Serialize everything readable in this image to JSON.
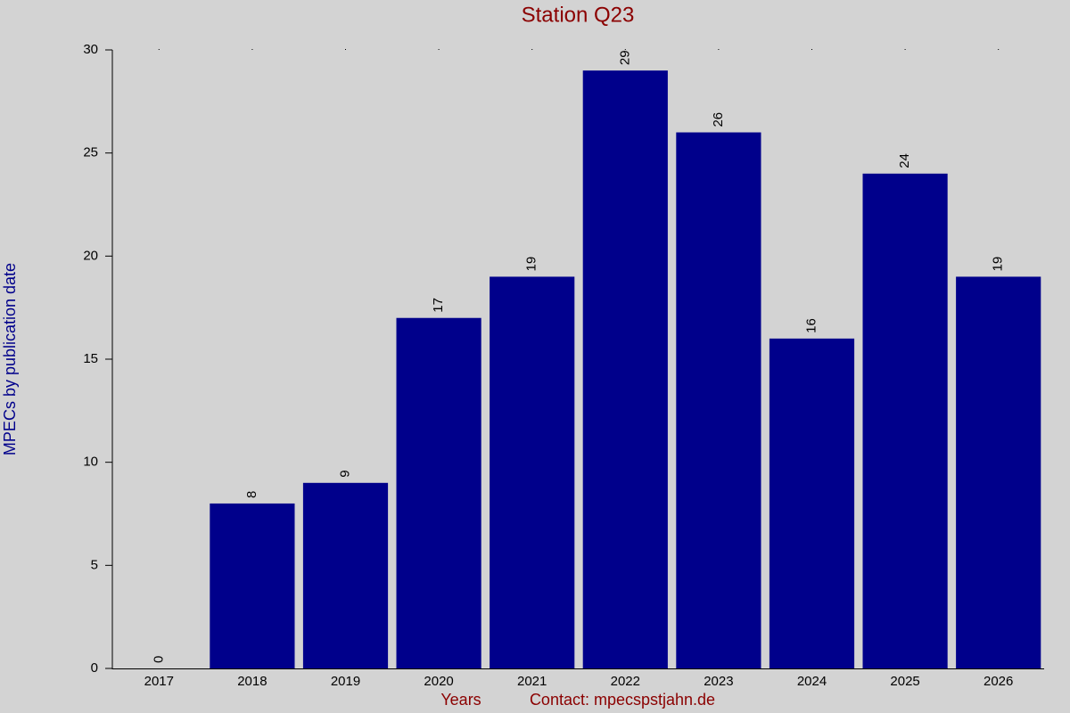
{
  "chart_data": {
    "type": "bar",
    "title": "Station Q23",
    "x_label": "Years",
    "contact": "Contact: mpecspstjahn.de",
    "y_label": "MPECs by publication date",
    "categories": [
      "2017",
      "2018",
      "2019",
      "2020",
      "2021",
      "2022",
      "2023",
      "2024",
      "2025",
      "2026"
    ],
    "values": [
      0,
      8,
      9,
      17,
      19,
      29,
      26,
      16,
      24,
      19
    ],
    "color": "#00008b",
    "ylim": [
      0,
      30
    ],
    "yticks": [
      0,
      5,
      10,
      15,
      20,
      25,
      30
    ]
  }
}
